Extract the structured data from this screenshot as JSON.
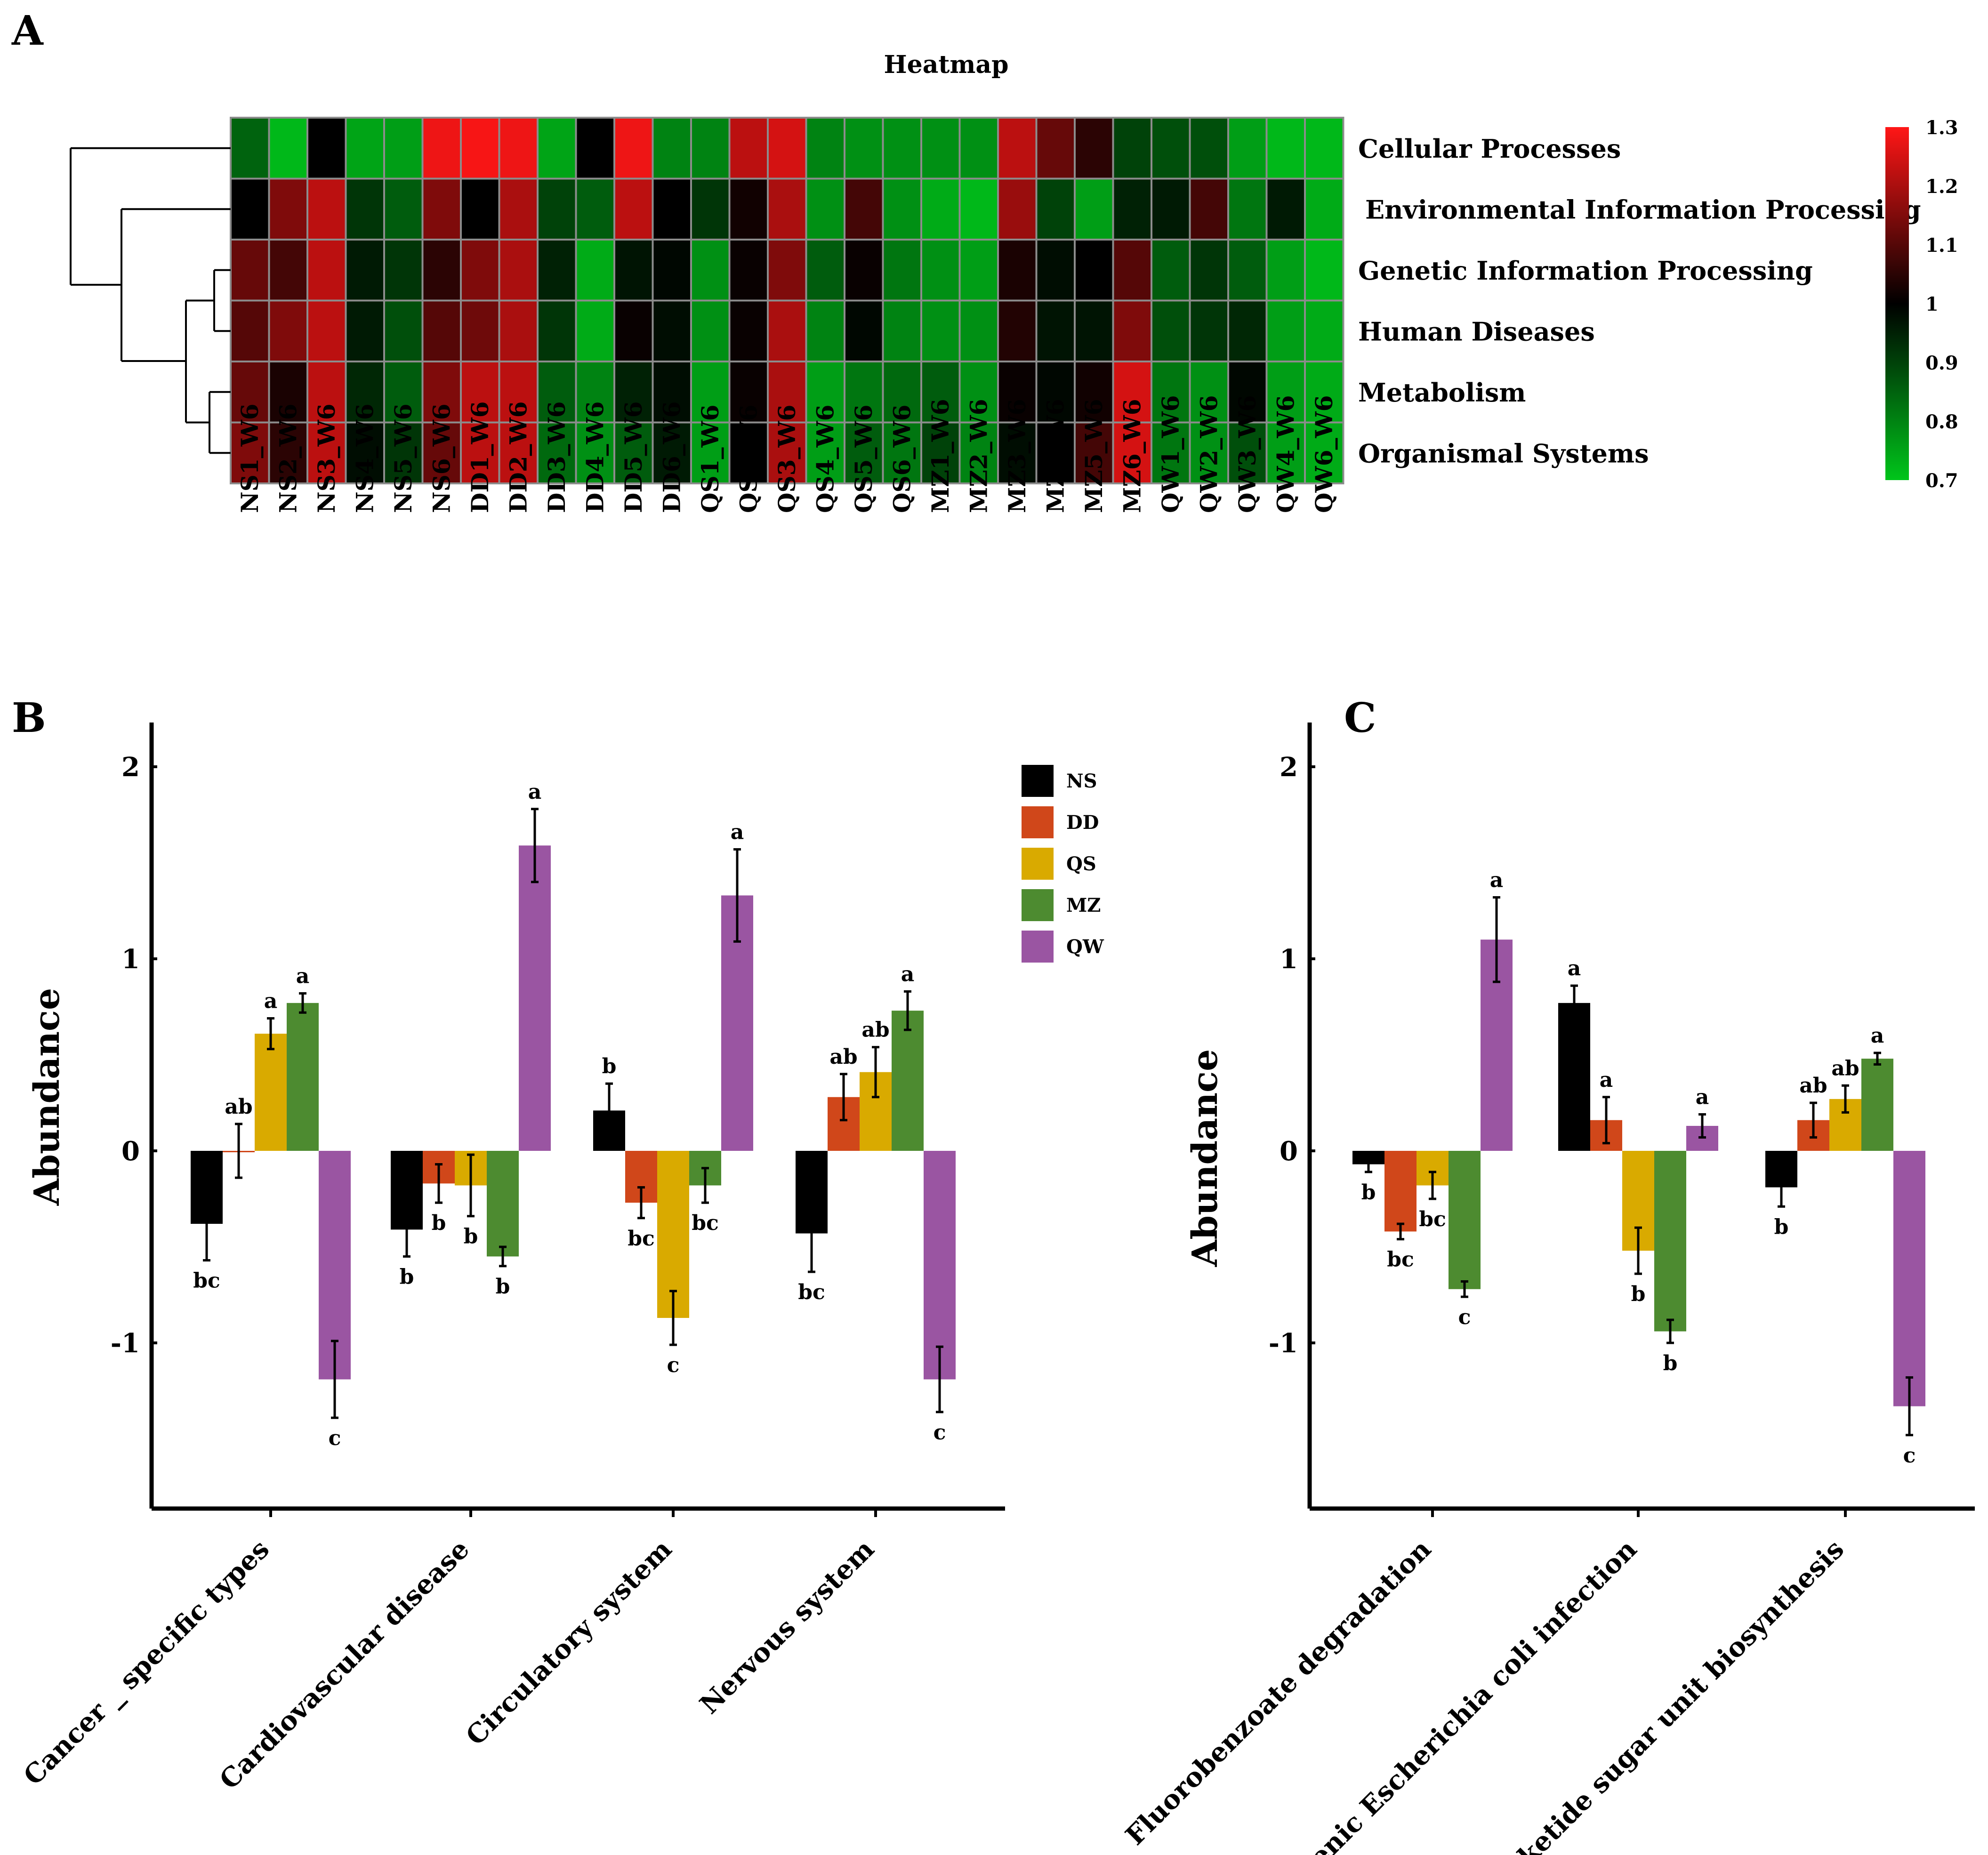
{
  "chart_data": [
    {
      "panel": "A",
      "type": "heatmap",
      "title": "Heatmap",
      "rows": [
        "Cellular Processes",
        "Environmental Information Processing",
        "Genetic Information Processing",
        "Human Diseases",
        "Metabolism",
        "Organismal Systems"
      ],
      "columns": [
        "NS1_W6",
        "NS2_W6",
        "NS3_W6",
        "NS4_W6",
        "NS5_W6",
        "NS6_W6",
        "DD1_W6",
        "DD2_W6",
        "DD3_W6",
        "DD4_W6",
        "DD5_W6",
        "DD6_W6",
        "QS1_W6",
        "QS2_W6",
        "QS3_W6",
        "QS4_W6",
        "QS5_W6",
        "QS6_W6",
        "MZ1_W6",
        "MZ2_W6",
        "MZ3_W6",
        "MZ4_W6",
        "MZ5_W6",
        "MZ6_W6",
        "QW1_W6",
        "QW2_W6",
        "QW3_W6",
        "QW4_W6",
        "QW6_W6"
      ],
      "values": [
        [
          0.85,
          0.72,
          1.0,
          0.75,
          0.76,
          1.28,
          1.29,
          1.28,
          0.75,
          1.0,
          1.28,
          0.8,
          0.8,
          1.22,
          1.25,
          0.8,
          0.78,
          0.78,
          0.78,
          0.78,
          1.22,
          1.12,
          1.05,
          0.9,
          0.88,
          0.88,
          0.76,
          0.72,
          0.72
        ],
        [
          1.0,
          1.15,
          1.22,
          0.92,
          0.86,
          1.15,
          1.0,
          1.2,
          0.9,
          0.86,
          1.22,
          1.0,
          0.92,
          1.02,
          1.2,
          0.78,
          1.08,
          0.78,
          0.74,
          0.72,
          1.18,
          0.9,
          0.76,
          0.95,
          0.96,
          1.08,
          0.82,
          0.96,
          0.74
        ],
        [
          1.12,
          1.08,
          1.22,
          0.96,
          0.92,
          1.05,
          1.15,
          1.2,
          0.95,
          0.74,
          0.97,
          0.99,
          0.78,
          1.01,
          1.15,
          0.86,
          1.01,
          0.82,
          0.78,
          0.76,
          1.03,
          0.98,
          1.0,
          1.1,
          0.86,
          0.92,
          0.86,
          0.76,
          0.72
        ],
        [
          1.1,
          1.15,
          1.22,
          0.96,
          0.88,
          1.1,
          1.13,
          1.2,
          0.92,
          0.74,
          1.01,
          0.98,
          0.78,
          1.01,
          1.2,
          0.8,
          0.99,
          0.8,
          0.78,
          0.78,
          1.04,
          0.97,
          0.97,
          1.15,
          0.88,
          0.92,
          0.94,
          0.76,
          0.74
        ],
        [
          1.12,
          1.03,
          1.22,
          0.94,
          0.86,
          1.15,
          1.22,
          1.22,
          0.86,
          0.8,
          0.95,
          0.98,
          0.76,
          1.01,
          1.2,
          0.76,
          0.82,
          0.84,
          0.86,
          0.78,
          1.01,
          0.99,
          1.02,
          1.25,
          0.82,
          0.78,
          0.99,
          0.76,
          0.74
        ],
        [
          1.15,
          1.05,
          1.22,
          0.98,
          0.92,
          1.12,
          1.22,
          1.22,
          0.84,
          0.78,
          0.86,
          0.96,
          0.76,
          1.0,
          1.2,
          0.76,
          0.86,
          0.82,
          0.9,
          0.8,
          0.98,
          1.0,
          1.08,
          1.25,
          0.82,
          0.78,
          0.88,
          0.76,
          0.74
        ]
      ],
      "colorbar": {
        "min": 0.7,
        "mid": 1.0,
        "max": 1.3,
        "ticks": [
          "1.3",
          "1.2",
          "1.1",
          "1",
          "0.9",
          "0.8",
          "0.7"
        ],
        "low_color": "#00c51b",
        "mid_color": "#000000",
        "high_color": "#ff1616"
      },
      "row_dendrogram": true
    },
    {
      "panel": "B",
      "type": "bar",
      "ylabel": "Abundance",
      "ylim": [
        -1.85,
        2.25
      ],
      "yticks": [
        "2",
        "1",
        "0",
        "-1"
      ],
      "categories": [
        "Cancer _ specific types",
        "Cardiovascular disease",
        "Circulatory system",
        "Nervous system"
      ],
      "series": [
        {
          "name": "NS",
          "color": "#000000",
          "values": [
            -0.38,
            -0.41,
            0.21,
            -0.43
          ],
          "errors": [
            0.19,
            0.14,
            0.14,
            0.2
          ],
          "letters": [
            "bc",
            "b",
            "b",
            "bc"
          ]
        },
        {
          "name": "DD",
          "color": "#d0471a",
          "values": [
            0.0,
            -0.17,
            -0.27,
            0.28
          ],
          "errors": [
            0.14,
            0.1,
            0.08,
            0.12
          ],
          "letters": [
            "ab",
            "b",
            "bc",
            "ab"
          ]
        },
        {
          "name": "QS",
          "color": "#d9aa00",
          "values": [
            0.61,
            -0.18,
            -0.87,
            0.41
          ],
          "errors": [
            0.08,
            0.16,
            0.14,
            0.13
          ],
          "letters": [
            "a",
            "b",
            "c",
            "ab"
          ]
        },
        {
          "name": "MZ",
          "color": "#4d8b30",
          "values": [
            0.77,
            -0.55,
            -0.18,
            0.73
          ],
          "errors": [
            0.05,
            0.05,
            0.09,
            0.1
          ],
          "letters": [
            "a",
            "b",
            "bc",
            "a"
          ]
        },
        {
          "name": "QW",
          "color": "#9a55a2",
          "values": [
            -1.19,
            1.59,
            1.33,
            -1.19
          ],
          "errors": [
            0.2,
            0.19,
            0.24,
            0.17
          ],
          "letters": [
            "c",
            "a",
            "a",
            "c"
          ]
        }
      ],
      "legend": [
        "NS",
        "DD",
        "QS",
        "MZ",
        "QW"
      ],
      "legend_position": "top-right"
    },
    {
      "panel": "C",
      "type": "bar",
      "ylabel": "Abundance",
      "ylim": [
        -1.85,
        2.25
      ],
      "yticks": [
        "2",
        "1",
        "0",
        "-1"
      ],
      "categories": [
        "Fluorobenzoate degradation",
        "Pathogenic Escherichia coli infection",
        "Polyketide sugar unit biosynthesis"
      ],
      "series": [
        {
          "name": "NS",
          "color": "#000000",
          "values": [
            -0.07,
            0.77,
            -0.19
          ],
          "errors": [
            0.04,
            0.09,
            0.1
          ],
          "letters": [
            "b",
            "a",
            "b"
          ]
        },
        {
          "name": "DD",
          "color": "#d0471a",
          "values": [
            -0.42,
            0.16,
            0.16
          ],
          "errors": [
            0.04,
            0.12,
            0.09
          ],
          "letters": [
            "bc",
            "a",
            "ab"
          ]
        },
        {
          "name": "QS",
          "color": "#d9aa00",
          "values": [
            -0.18,
            -0.52,
            0.27
          ],
          "errors": [
            0.07,
            0.12,
            0.07
          ],
          "letters": [
            "bc",
            "b",
            "ab"
          ]
        },
        {
          "name": "MZ",
          "color": "#4d8b30",
          "values": [
            -0.72,
            -0.94,
            0.48
          ],
          "errors": [
            0.04,
            0.06,
            0.03
          ],
          "letters": [
            "c",
            "b",
            "a"
          ]
        },
        {
          "name": "QW",
          "color": "#9a55a2",
          "values": [
            1.1,
            0.13,
            -1.33
          ],
          "errors": [
            0.22,
            0.06,
            0.15
          ],
          "letters": [
            "a",
            "a",
            "c"
          ]
        }
      ]
    }
  ],
  "panel_labels": {
    "a": "A",
    "b": "B",
    "c": "C"
  }
}
